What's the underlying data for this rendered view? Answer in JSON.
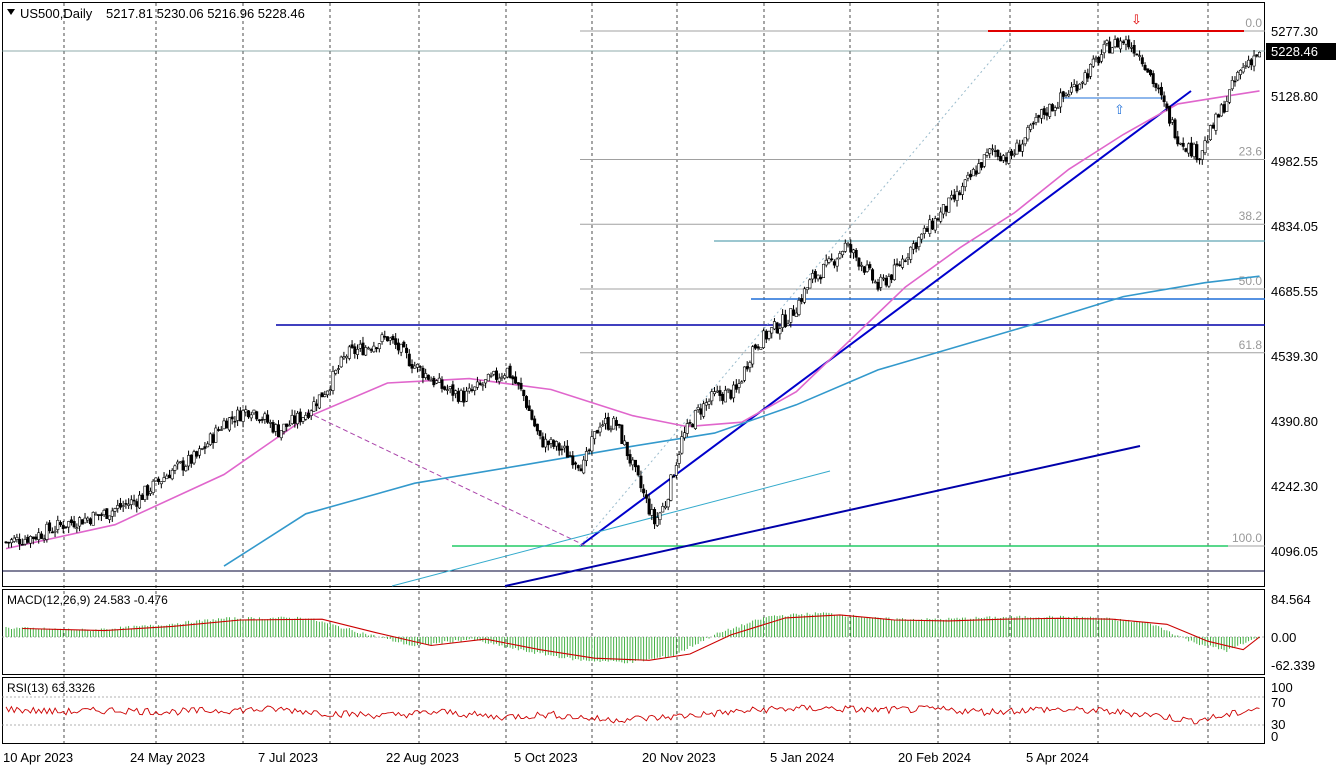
{
  "header": {
    "symbol": "US500,Daily",
    "ohlc": "5217.81 5230.06 5216.96 5228.46",
    "last_price": "5228.46"
  },
  "price_axis": {
    "ticks": [
      "5277.30",
      "5128.80",
      "4982.55",
      "4834.05",
      "4685.55",
      "4539.30",
      "4390.80",
      "4242.30",
      "4096.05"
    ]
  },
  "time_axis": {
    "labels": [
      "10 Apr 2023",
      "24 May 2023",
      "7 Jul 2023",
      "22 Aug 2023",
      "5 Oct 2023",
      "20 Nov 2023",
      "5 Jan 2024",
      "20 Feb 2024",
      "5 Apr 2024"
    ]
  },
  "fibonacci": {
    "levels": [
      {
        "label": "0.0",
        "price": 5277.3
      },
      {
        "label": "23.6",
        "price": 4982.55
      },
      {
        "label": "38.2",
        "price": 4834.05
      },
      {
        "label": "50.0",
        "price": 4685.55
      },
      {
        "label": "61.8",
        "price": 4539.3
      },
      {
        "label": "100.0",
        "price": 4096.05
      }
    ]
  },
  "macd": {
    "label": "MACD(12,26,9) 24.583 -0.476",
    "ticks": [
      "84.564",
      "0.00",
      "-62.339"
    ]
  },
  "rsi": {
    "label": "RSI(13) 63.3326",
    "ticks": [
      "100",
      "70",
      "30",
      "0"
    ]
  },
  "chart_data": {
    "type": "candlestick",
    "symbol": "US500",
    "timeframe": "Daily",
    "last": {
      "open": 5217.81,
      "high": 5230.06,
      "low": 5216.96,
      "close": 5228.46
    },
    "ylim": [
      4050,
      5300
    ],
    "price_path": [
      [
        0,
        4105
      ],
      [
        10,
        4118
      ],
      [
        22,
        4148
      ],
      [
        35,
        4168
      ],
      [
        48,
        4202
      ],
      [
        60,
        4265
      ],
      [
        70,
        4300
      ],
      [
        80,
        4380
      ],
      [
        90,
        4412
      ],
      [
        100,
        4360
      ],
      [
        110,
        4400
      ],
      [
        118,
        4460
      ],
      [
        125,
        4535
      ],
      [
        135,
        4560
      ],
      [
        140,
        4575
      ],
      [
        150,
        4510
      ],
      [
        160,
        4460
      ],
      [
        168,
        4438
      ],
      [
        176,
        4470
      ],
      [
        184,
        4500
      ],
      [
        190,
        4440
      ],
      [
        196,
        4338
      ],
      [
        204,
        4318
      ],
      [
        212,
        4280
      ],
      [
        218,
        4380
      ],
      [
        224,
        4375
      ],
      [
        232,
        4245
      ],
      [
        238,
        4150
      ],
      [
        242,
        4195
      ],
      [
        248,
        4340
      ],
      [
        254,
        4405
      ],
      [
        260,
        4440
      ],
      [
        268,
        4450
      ],
      [
        274,
        4550
      ],
      [
        280,
        4585
      ],
      [
        288,
        4625
      ],
      [
        296,
        4710
      ],
      [
        302,
        4740
      ],
      [
        308,
        4785
      ],
      [
        314,
        4745
      ],
      [
        320,
        4690
      ],
      [
        326,
        4725
      ],
      [
        332,
        4780
      ],
      [
        338,
        4820
      ],
      [
        344,
        4865
      ],
      [
        350,
        4905
      ],
      [
        356,
        4960
      ],
      [
        362,
        5005
      ],
      [
        368,
        4985
      ],
      [
        374,
        5030
      ],
      [
        380,
        5085
      ],
      [
        386,
        5115
      ],
      [
        392,
        5150
      ],
      [
        398,
        5190
      ],
      [
        404,
        5240
      ],
      [
        410,
        5255
      ],
      [
        414,
        5240
      ],
      [
        418,
        5205
      ],
      [
        424,
        5120
      ],
      [
        430,
        5035
      ],
      [
        434,
        5010
      ],
      [
        438,
        4995
      ],
      [
        444,
        5070
      ],
      [
        448,
        5120
      ],
      [
        452,
        5175
      ],
      [
        456,
        5210
      ],
      [
        460,
        5228.46
      ]
    ],
    "moving_averages": [
      {
        "color": "#e066cc",
        "points": [
          [
            0,
            4090
          ],
          [
            40,
            4145
          ],
          [
            80,
            4260
          ],
          [
            110,
            4390
          ],
          [
            140,
            4470
          ],
          [
            170,
            4480
          ],
          [
            200,
            4455
          ],
          [
            230,
            4395
          ],
          [
            250,
            4370
          ],
          [
            270,
            4380
          ],
          [
            290,
            4450
          ],
          [
            310,
            4570
          ],
          [
            330,
            4690
          ],
          [
            350,
            4780
          ],
          [
            370,
            4860
          ],
          [
            390,
            4960
          ],
          [
            410,
            5040
          ],
          [
            430,
            5110
          ],
          [
            450,
            5130
          ],
          [
            460,
            5140
          ]
        ]
      },
      {
        "color": "#3399cc",
        "points": [
          [
            80,
            4050
          ],
          [
            110,
            4170
          ],
          [
            150,
            4240
          ],
          [
            190,
            4282
          ],
          [
            230,
            4325
          ],
          [
            260,
            4355
          ],
          [
            290,
            4420
          ],
          [
            320,
            4500
          ],
          [
            350,
            4555
          ],
          [
            380,
            4610
          ],
          [
            410,
            4668
          ],
          [
            440,
            4700
          ],
          [
            460,
            4715
          ]
        ]
      }
    ],
    "annotations": {
      "arrow_down": "⇩",
      "arrow_up": "⇧"
    },
    "macd_series": {
      "ylim": [
        -80,
        100
      ],
      "points": [
        [
          0,
          20
        ],
        [
          30,
          15
        ],
        [
          55,
          25
        ],
        [
          80,
          40
        ],
        [
          110,
          42
        ],
        [
          130,
          10
        ],
        [
          150,
          -20
        ],
        [
          170,
          -5
        ],
        [
          190,
          -30
        ],
        [
          210,
          -50
        ],
        [
          230,
          -55
        ],
        [
          245,
          -40
        ],
        [
          260,
          5
        ],
        [
          280,
          45
        ],
        [
          300,
          52
        ],
        [
          320,
          40
        ],
        [
          340,
          38
        ],
        [
          360,
          42
        ],
        [
          380,
          44
        ],
        [
          400,
          42
        ],
        [
          420,
          30
        ],
        [
          435,
          -10
        ],
        [
          448,
          -30
        ],
        [
          460,
          0
        ]
      ]
    },
    "rsi_series": {
      "ylim": [
        0,
        100
      ],
      "points": [
        [
          0,
          60
        ],
        [
          20,
          55
        ],
        [
          40,
          58
        ],
        [
          60,
          55
        ],
        [
          80,
          58
        ],
        [
          100,
          60
        ],
        [
          120,
          52
        ],
        [
          140,
          48
        ],
        [
          160,
          55
        ],
        [
          180,
          45
        ],
        [
          200,
          50
        ],
        [
          220,
          40
        ],
        [
          240,
          44
        ],
        [
          260,
          52
        ],
        [
          280,
          60
        ],
        [
          300,
          62
        ],
        [
          320,
          58
        ],
        [
          340,
          60
        ],
        [
          360,
          55
        ],
        [
          380,
          60
        ],
        [
          400,
          57
        ],
        [
          420,
          50
        ],
        [
          435,
          38
        ],
        [
          448,
          48
        ],
        [
          460,
          63.3
        ]
      ]
    }
  }
}
